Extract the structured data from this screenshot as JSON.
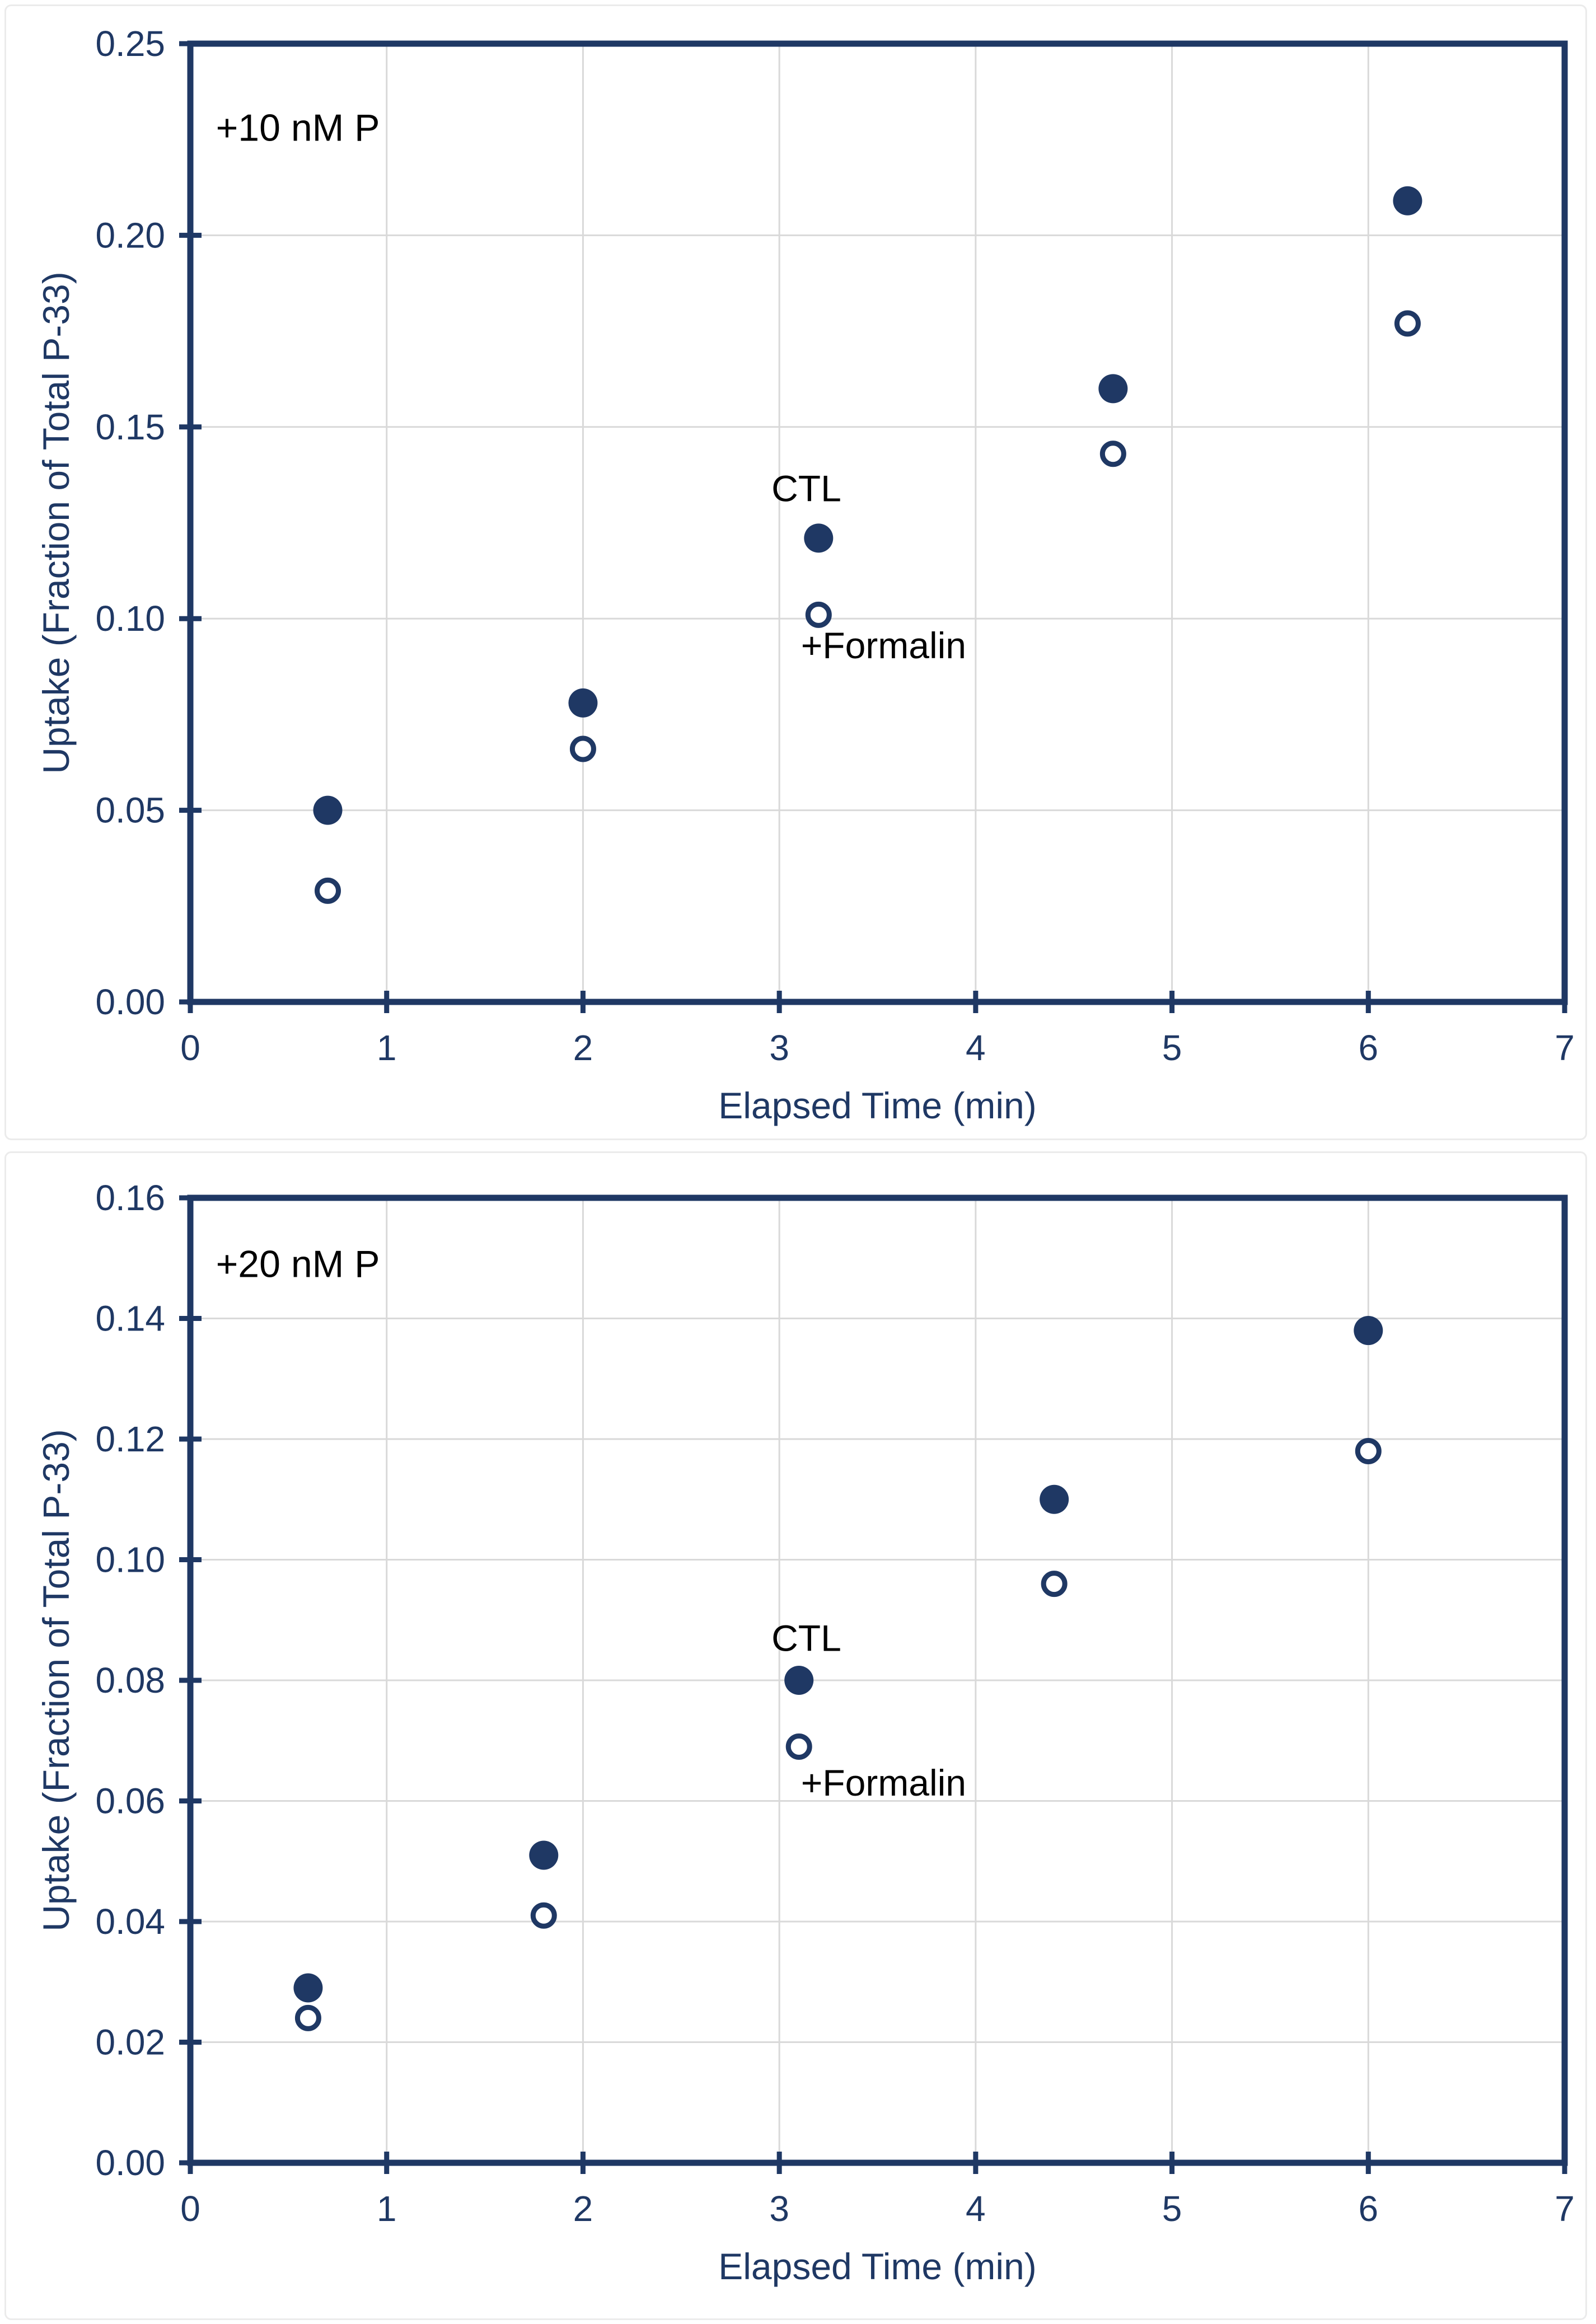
{
  "colors": {
    "navy": "#1F3864",
    "gridline": "#D9D9D9",
    "panel_border": "#EBEBEB",
    "annotation_text": "#000000",
    "background": "#FFFFFF",
    "open_marker_fill": "#FFFFFF"
  },
  "chart_data": [
    {
      "type": "scatter",
      "panel": "top",
      "annotation": {
        "text": "+10 nM P",
        "x": 0.13,
        "y": 0.228
      },
      "xlabel": "Elapsed Time (min)",
      "ylabel": "Uptake (Fraction of Total P-33)",
      "xlim": [
        0,
        7
      ],
      "ylim": [
        0,
        0.25
      ],
      "xticks": [
        "0",
        "1",
        "2",
        "3",
        "4",
        "5",
        "6",
        "7"
      ],
      "yticks": [
        "0.00",
        "0.05",
        "0.10",
        "0.15",
        "0.20",
        "0.25"
      ],
      "grid": true,
      "legend_position": "inline-labels",
      "series": [
        {
          "name": "CTL",
          "marker": "filled-circle",
          "label": {
            "text": "CTL",
            "x": 2.96,
            "y": 0.134
          },
          "points": [
            [
              0.7,
              0.05
            ],
            [
              2.0,
              0.078
            ],
            [
              3.2,
              0.121
            ],
            [
              4.7,
              0.16
            ],
            [
              6.2,
              0.209
            ]
          ]
        },
        {
          "name": "+Formalin",
          "marker": "open-circle",
          "label": {
            "text": "+Formalin",
            "x": 3.11,
            "y": 0.093
          },
          "points": [
            [
              0.7,
              0.029
            ],
            [
              2.0,
              0.066
            ],
            [
              3.2,
              0.101
            ],
            [
              4.7,
              0.143
            ],
            [
              6.2,
              0.177
            ]
          ]
        }
      ]
    },
    {
      "type": "scatter",
      "panel": "bottom",
      "annotation": {
        "text": "+20 nM P",
        "x": 0.13,
        "y": 0.149
      },
      "xlabel": "Elapsed Time (min)",
      "ylabel": "Uptake (Fraction of Total P-33)",
      "xlim": [
        0,
        7
      ],
      "ylim": [
        0,
        0.16
      ],
      "xticks": [
        "0",
        "1",
        "2",
        "3",
        "4",
        "5",
        "6",
        "7"
      ],
      "yticks": [
        "0.00",
        "0.02",
        "0.04",
        "0.06",
        "0.08",
        "0.10",
        "0.12",
        "0.14",
        "0.16"
      ],
      "grid": true,
      "legend_position": "inline-labels",
      "series": [
        {
          "name": "CTL",
          "marker": "filled-circle",
          "label": {
            "text": "CTL",
            "x": 2.96,
            "y": 0.087
          },
          "points": [
            [
              0.6,
              0.029
            ],
            [
              1.8,
              0.051
            ],
            [
              3.1,
              0.08
            ],
            [
              4.4,
              0.11
            ],
            [
              6.0,
              0.138
            ]
          ]
        },
        {
          "name": "+Formalin",
          "marker": "open-circle",
          "label": {
            "text": "+Formalin",
            "x": 3.11,
            "y": 0.063
          },
          "points": [
            [
              0.6,
              0.024
            ],
            [
              1.8,
              0.041
            ],
            [
              3.1,
              0.069
            ],
            [
              4.4,
              0.096
            ],
            [
              6.0,
              0.118
            ]
          ]
        }
      ]
    }
  ]
}
